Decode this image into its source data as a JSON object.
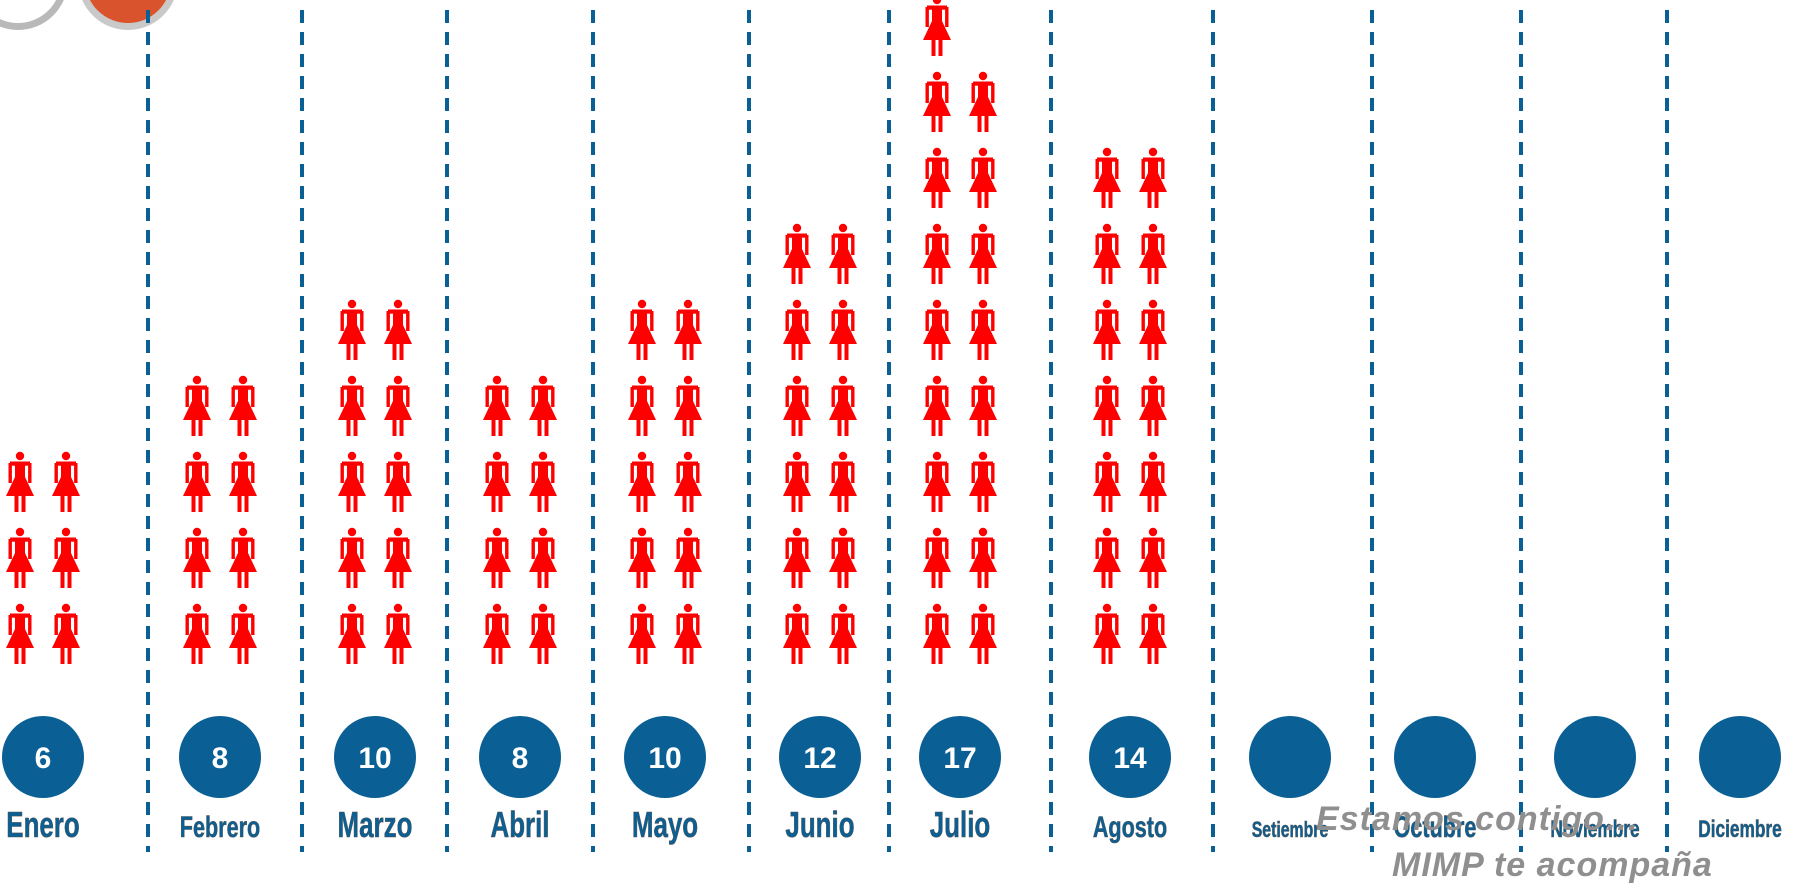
{
  "chart_data": {
    "type": "pictogram",
    "categories": [
      "Enero",
      "Febrero",
      "Marzo",
      "Abril",
      "Mayo",
      "Junio",
      "Julio",
      "Agosto",
      "Setiembre",
      "Octubre",
      "Noviembre",
      "Diciembre"
    ],
    "values": [
      6,
      8,
      10,
      8,
      10,
      12,
      17,
      14,
      null,
      null,
      null,
      null
    ],
    "value_labels": [
      "6",
      "8",
      "10",
      "8",
      "10",
      "12",
      "17",
      "14",
      "",
      "",
      "",
      ""
    ],
    "icon": "woman-figure-icon",
    "icon_color": "#ff0000",
    "circle_color": "#0a5f94",
    "label_color": "#0a5f94",
    "divider_color": "#0a5f94"
  },
  "footer": {
    "line1": "Estamos contigo…",
    "line2": "MIMP te acompaña"
  }
}
